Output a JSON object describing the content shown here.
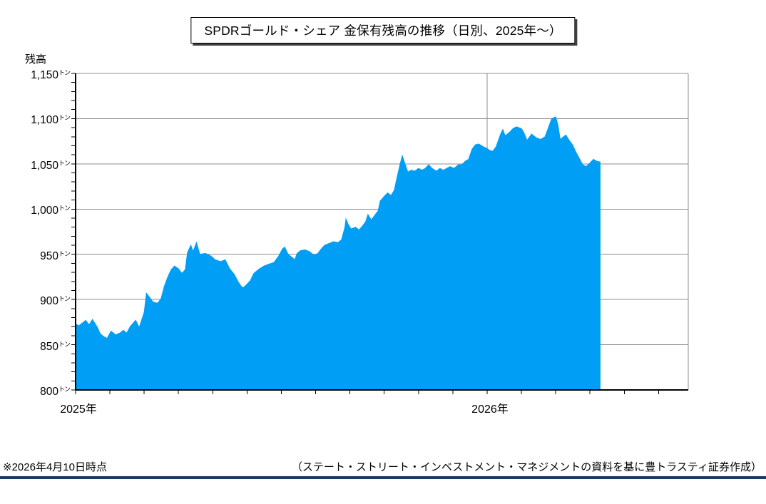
{
  "title": "SPDRゴールド・シェア 金保有残高の推移（日別、2025年～）",
  "y_axis": {
    "title": "残高",
    "unit": "トン",
    "min": 800,
    "max": 1150,
    "tick_step": 50,
    "minor_tick_step": 10,
    "tick_labels": [
      "1,150",
      "1,100",
      "1,050",
      "1,000",
      "950",
      "900",
      "850",
      "800"
    ]
  },
  "x_axis": {
    "labels": [
      {
        "text": "2025年",
        "month": 0
      },
      {
        "text": "2026年",
        "month": 12
      }
    ],
    "minor_tick_every_months": 1,
    "end_month": 17.87
  },
  "footer": {
    "note_left": "※2026年4月10日時点",
    "note_right": "（ステート・ストリート・インベストメント・マネジメントの資料を基に豊トラスティ証券作成）"
  },
  "colors": {
    "area_blue": "#009FF5",
    "gridline_gray": "#8C8C8C",
    "axis_black": "#000000",
    "footer_rule_navy": "#1F3864"
  },
  "chart_data": {
    "type": "area",
    "title": "SPDRゴールド・シェア 金保有残高の推移（日別、2025年～）",
    "ylabel": "残高",
    "unit": "トン",
    "ylim": [
      800,
      1150
    ],
    "xrange": [
      "2025-01-01",
      "2026-06-28"
    ],
    "grid": "horizontal-major, vertical-at-year",
    "legend": "none",
    "as_of": "2026-04-10",
    "series": [
      {
        "name": "金保有残高",
        "points": [
          [
            "2025-01-01",
            873
          ],
          [
            "2025-01-04",
            871
          ],
          [
            "2025-01-07",
            874
          ],
          [
            "2025-01-10",
            877
          ],
          [
            "2025-01-13",
            872
          ],
          [
            "2025-01-16",
            878
          ],
          [
            "2025-01-20",
            870
          ],
          [
            "2025-01-23",
            862
          ],
          [
            "2025-01-26",
            859
          ],
          [
            "2025-01-29",
            857
          ],
          [
            "2025-02-02",
            865
          ],
          [
            "2025-02-06",
            861
          ],
          [
            "2025-02-10",
            863
          ],
          [
            "2025-02-13",
            866
          ],
          [
            "2025-02-16",
            863
          ],
          [
            "2025-02-19",
            870
          ],
          [
            "2025-02-24",
            877
          ],
          [
            "2025-02-27",
            869
          ],
          [
            "2025-03-01",
            886
          ],
          [
            "2025-03-03",
            907
          ],
          [
            "2025-03-06",
            902
          ],
          [
            "2025-03-09",
            897
          ],
          [
            "2025-03-13",
            896
          ],
          [
            "2025-03-16",
            901
          ],
          [
            "2025-03-19",
            915
          ],
          [
            "2025-03-22",
            925
          ],
          [
            "2025-03-25",
            933
          ],
          [
            "2025-03-28",
            937
          ],
          [
            "2025-04-01",
            934
          ],
          [
            "2025-04-04",
            929
          ],
          [
            "2025-04-07",
            933
          ],
          [
            "2025-04-09",
            952
          ],
          [
            "2025-04-12",
            960
          ],
          [
            "2025-04-14",
            953
          ],
          [
            "2025-04-17",
            963
          ],
          [
            "2025-04-20",
            950
          ],
          [
            "2025-04-25",
            951
          ],
          [
            "2025-04-30",
            948
          ],
          [
            "2025-05-03",
            944
          ],
          [
            "2025-05-08",
            942
          ],
          [
            "2025-05-12",
            944
          ],
          [
            "2025-05-16",
            934
          ],
          [
            "2025-05-20",
            928
          ],
          [
            "2025-05-23",
            921
          ],
          [
            "2025-05-26",
            915
          ],
          [
            "2025-05-28",
            913
          ],
          [
            "2025-06-01",
            917
          ],
          [
            "2025-06-04",
            921
          ],
          [
            "2025-06-07",
            929
          ],
          [
            "2025-06-12",
            934
          ],
          [
            "2025-06-16",
            937
          ],
          [
            "2025-06-20",
            939
          ],
          [
            "2025-06-25",
            941
          ],
          [
            "2025-06-29",
            948
          ],
          [
            "2025-07-02",
            956
          ],
          [
            "2025-07-04",
            958
          ],
          [
            "2025-07-07",
            950
          ],
          [
            "2025-07-10",
            947
          ],
          [
            "2025-07-13",
            944
          ],
          [
            "2025-07-15",
            951
          ],
          [
            "2025-07-18",
            954
          ],
          [
            "2025-07-22",
            955
          ],
          [
            "2025-07-26",
            953
          ],
          [
            "2025-07-30",
            949
          ],
          [
            "2025-08-03",
            951
          ],
          [
            "2025-08-06",
            956
          ],
          [
            "2025-08-09",
            960
          ],
          [
            "2025-08-13",
            962
          ],
          [
            "2025-08-17",
            964
          ],
          [
            "2025-08-21",
            963
          ],
          [
            "2025-08-24",
            966
          ],
          [
            "2025-08-27",
            980
          ],
          [
            "2025-08-28",
            989
          ],
          [
            "2025-08-30",
            983
          ],
          [
            "2025-09-02",
            978
          ],
          [
            "2025-09-06",
            980
          ],
          [
            "2025-09-09",
            977
          ],
          [
            "2025-09-12",
            981
          ],
          [
            "2025-09-15",
            986
          ],
          [
            "2025-09-17",
            994
          ],
          [
            "2025-09-20",
            988
          ],
          [
            "2025-09-23",
            993
          ],
          [
            "2025-09-26",
            998
          ],
          [
            "2025-09-28",
            1009
          ],
          [
            "2025-10-01",
            1014
          ],
          [
            "2025-10-04",
            1018
          ],
          [
            "2025-10-07",
            1015
          ],
          [
            "2025-10-10",
            1021
          ],
          [
            "2025-10-12",
            1033
          ],
          [
            "2025-10-15",
            1049
          ],
          [
            "2025-10-17",
            1059
          ],
          [
            "2025-10-20",
            1048
          ],
          [
            "2025-10-22",
            1041
          ],
          [
            "2025-10-25",
            1043
          ],
          [
            "2025-10-28",
            1042
          ],
          [
            "2025-11-01",
            1045
          ],
          [
            "2025-11-04",
            1043
          ],
          [
            "2025-11-07",
            1045
          ],
          [
            "2025-11-10",
            1049
          ],
          [
            "2025-11-13",
            1045
          ],
          [
            "2025-11-17",
            1042
          ],
          [
            "2025-11-20",
            1045
          ],
          [
            "2025-11-23",
            1043
          ],
          [
            "2025-11-26",
            1045
          ],
          [
            "2025-11-29",
            1047
          ],
          [
            "2025-12-02",
            1045
          ],
          [
            "2025-12-06",
            1049
          ],
          [
            "2025-12-09",
            1049
          ],
          [
            "2025-12-12",
            1053
          ],
          [
            "2025-12-15",
            1055
          ],
          [
            "2025-12-18",
            1066
          ],
          [
            "2025-12-21",
            1071
          ],
          [
            "2025-12-24",
            1072
          ],
          [
            "2025-12-28",
            1069
          ],
          [
            "2026-01-01",
            1067
          ],
          [
            "2026-01-03",
            1065
          ],
          [
            "2026-01-06",
            1064
          ],
          [
            "2026-01-09",
            1069
          ],
          [
            "2026-01-13",
            1083
          ],
          [
            "2026-01-15",
            1088
          ],
          [
            "2026-01-17",
            1081
          ],
          [
            "2026-01-21",
            1085
          ],
          [
            "2026-01-24",
            1089
          ],
          [
            "2026-01-27",
            1091
          ],
          [
            "2026-02-01",
            1089
          ],
          [
            "2026-02-03",
            1085
          ],
          [
            "2026-02-06",
            1076
          ],
          [
            "2026-02-10",
            1083
          ],
          [
            "2026-02-14",
            1079
          ],
          [
            "2026-02-18",
            1077
          ],
          [
            "2026-02-22",
            1080
          ],
          [
            "2026-02-25",
            1090
          ],
          [
            "2026-02-28",
            1100
          ],
          [
            "2026-03-01",
            1102
          ],
          [
            "2026-03-03",
            1093
          ],
          [
            "2026-03-05",
            1077
          ],
          [
            "2026-03-08",
            1080
          ],
          [
            "2026-03-10",
            1082
          ],
          [
            "2026-03-13",
            1076
          ],
          [
            "2026-03-16",
            1071
          ],
          [
            "2026-03-19",
            1063
          ],
          [
            "2026-03-22",
            1056
          ],
          [
            "2026-03-25",
            1049
          ],
          [
            "2026-03-28",
            1047
          ],
          [
            "2026-04-01",
            1051
          ],
          [
            "2026-04-04",
            1055
          ],
          [
            "2026-04-07",
            1053
          ],
          [
            "2026-04-10",
            1052
          ]
        ]
      }
    ]
  }
}
